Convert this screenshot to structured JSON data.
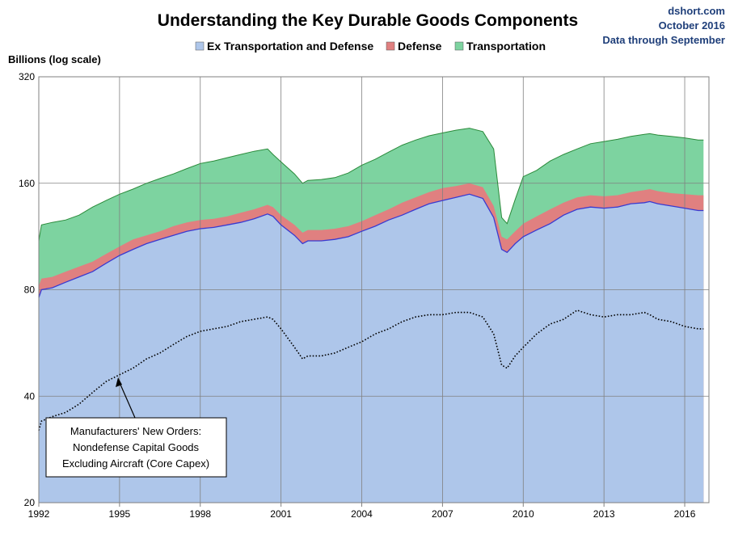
{
  "chart_data": {
    "type": "area",
    "title": "Understanding the Key Durable Goods Components",
    "source": [
      "dshort.com",
      "October 2016",
      "Data through September"
    ],
    "ylabel": "Billions (log scale)",
    "y_scale": "log",
    "ylim": [
      20,
      320
    ],
    "y_ticks": [
      20,
      40,
      80,
      160,
      320
    ],
    "y_tick_labels": [
      "20",
      "40",
      "80",
      "160",
      "320"
    ],
    "xlim": [
      1992.0,
      2016.9
    ],
    "x_ticks": [
      1992,
      1995,
      1998,
      2001,
      2004,
      2007,
      2010,
      2013,
      2016
    ],
    "x_tick_labels": [
      "1992",
      "1995",
      "1998",
      "2001",
      "2004",
      "2007",
      "2010",
      "2013",
      "2016"
    ],
    "grid": true,
    "legend_position": "top",
    "x": [
      1992.0,
      1992.1,
      1992.5,
      1993.0,
      1993.5,
      1994.0,
      1994.5,
      1995.0,
      1995.5,
      1996.0,
      1996.5,
      1997.0,
      1997.5,
      1998.0,
      1998.5,
      1999.0,
      1999.5,
      2000.0,
      2000.5,
      2000.7,
      2001.0,
      2001.5,
      2001.8,
      2002.0,
      2002.5,
      2003.0,
      2003.5,
      2004.0,
      2004.5,
      2005.0,
      2005.5,
      2006.0,
      2006.5,
      2007.0,
      2007.5,
      2008.0,
      2008.5,
      2008.9,
      2009.2,
      2009.4,
      2009.7,
      2010.0,
      2010.5,
      2011.0,
      2011.5,
      2012.0,
      2012.5,
      2013.0,
      2013.5,
      2014.0,
      2014.5,
      2014.7,
      2015.0,
      2015.5,
      2016.0,
      2016.5,
      2016.7
    ],
    "series": [
      {
        "name": "Ex Transportation and Defense",
        "color": "#aec6ea",
        "edge": "#3a3ad0",
        "values": [
          76,
          80,
          81,
          84,
          87,
          90,
          95,
          100,
          104,
          108,
          111,
          114,
          117,
          119,
          120,
          122,
          124,
          127,
          131,
          129,
          122,
          114,
          108,
          110,
          110,
          111,
          113,
          117,
          121,
          126,
          130,
          135,
          140,
          143,
          146,
          149,
          145,
          128,
          104,
          102,
          108,
          113,
          118,
          123,
          130,
          135,
          137,
          136,
          137,
          140,
          141,
          142,
          140,
          138,
          136,
          134,
          134
        ]
      },
      {
        "name": "Defense",
        "color": "#e08080",
        "values": [
          82,
          86,
          87,
          90,
          93,
          96,
          101,
          106,
          111,
          114,
          117,
          121,
          124,
          126,
          127,
          129,
          132,
          135,
          139,
          137,
          130,
          122,
          116,
          118,
          118,
          119,
          121,
          125,
          130,
          135,
          141,
          146,
          151,
          155,
          157,
          160,
          156,
          138,
          113,
          111,
          117,
          123,
          129,
          135,
          141,
          146,
          148,
          147,
          148,
          151,
          153,
          154,
          152,
          150,
          149,
          148,
          148
        ]
      },
      {
        "name": "Transportation",
        "color": "#7dd3a0",
        "edge": "#2a8a3a",
        "values": [
          110,
          122,
          124,
          126,
          130,
          137,
          143,
          149,
          154,
          160,
          165,
          170,
          176,
          182,
          185,
          189,
          193,
          197,
          200,
          193,
          184,
          170,
          160,
          163,
          164,
          166,
          171,
          180,
          187,
          196,
          205,
          212,
          218,
          222,
          226,
          229,
          224,
          200,
          128,
          123,
          144,
          167,
          174,
          185,
          193,
          200,
          207,
          210,
          213,
          217,
          220,
          221,
          219,
          217,
          215,
          212,
          212
        ]
      },
      {
        "name": "Manufacturers' New Orders: Nondefense Capital Goods Excluding Aircraft (Core Capex)",
        "color": "#000000",
        "style": "dotted",
        "values": [
          32,
          34,
          35,
          36,
          38,
          41,
          44,
          46,
          48,
          51,
          53,
          56,
          59,
          61,
          62,
          63,
          65,
          66,
          67,
          66,
          62,
          55,
          51,
          52,
          52,
          53,
          55,
          57,
          60,
          62,
          65,
          67,
          68,
          68,
          69,
          69,
          67,
          60,
          49,
          48,
          52,
          55,
          60,
          64,
          66,
          70,
          68,
          67,
          68,
          68,
          69,
          68,
          66,
          65,
          63,
          62,
          62
        ]
      }
    ]
  },
  "annotation": {
    "lines": [
      "Manufacturers' New Orders:",
      "Nondefense  Capital Goods",
      "Excluding Aircraft (Core Capex)"
    ]
  }
}
